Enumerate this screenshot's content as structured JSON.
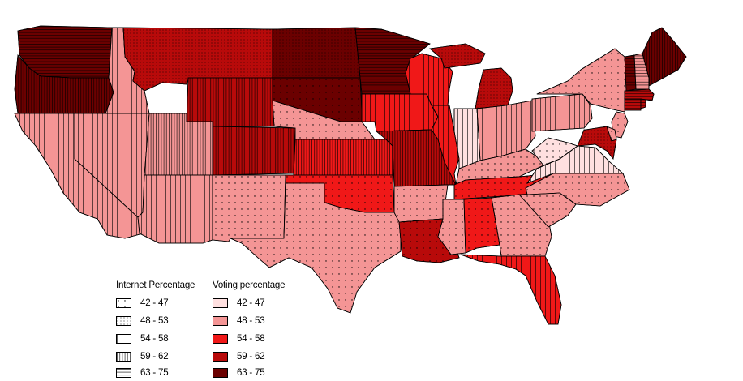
{
  "legend": {
    "internet_title": "Internet Percentage",
    "voting_title": "Voting percentage",
    "internet_classes": [
      {
        "range": "42 - 47",
        "pattern": "sparse-dots"
      },
      {
        "range": "48 - 53",
        "pattern": "dense-dots"
      },
      {
        "range": "54 - 58",
        "pattern": "wide-vertical"
      },
      {
        "range": "59 - 62",
        "pattern": "narrow-vertical"
      },
      {
        "range": "63 - 75",
        "pattern": "horizontal"
      }
    ],
    "voting_classes": [
      {
        "range": "42 - 47",
        "color": "#ffe0e0"
      },
      {
        "range": "48 - 53",
        "color": "#f49595"
      },
      {
        "range": "54 - 58",
        "color": "#f01818"
      },
      {
        "range": "59 - 62",
        "color": "#b80a0a"
      },
      {
        "range": "63 - 75",
        "color": "#6b0000"
      }
    ]
  }
}
